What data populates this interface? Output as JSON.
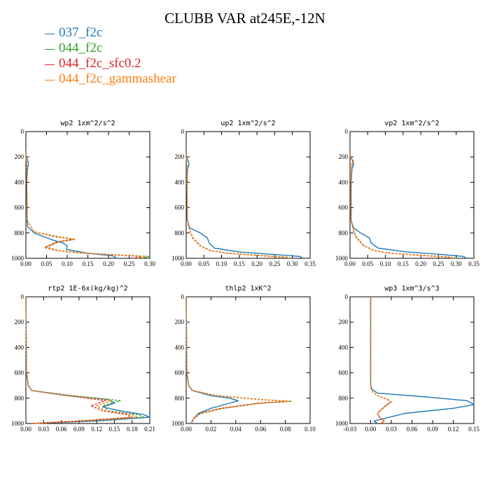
{
  "title": "CLUBB VAR at245E,-12N",
  "legend": [
    {
      "label": "037_f2c",
      "color": "#1f77b4"
    },
    {
      "label": "044_f2c",
      "color": "#2ca02c"
    },
    {
      "label": "044_f2c_sfc0.2",
      "color": "#d62728"
    },
    {
      "label": "044_f2c_gammashear",
      "color": "#ff7f0e"
    }
  ],
  "chart_data": [
    {
      "type": "line",
      "title": "wp2  1xm^2/s^2",
      "xlim": [
        0,
        0.3
      ],
      "ylim": [
        1000,
        0
      ],
      "xticks": [
        0.0,
        0.05,
        0.1,
        0.15,
        0.2,
        0.25,
        0.3
      ],
      "xtick_labels": [
        "0.00",
        "0.05",
        "0.10",
        "0.15",
        "0.20",
        "0.25",
        "0.30"
      ],
      "yticks": [
        0,
        200,
        400,
        600,
        800,
        1000
      ],
      "series": [
        {
          "name": "037_f2c",
          "color": "#1f77b4",
          "dashed": false,
          "x": [
            0,
            0,
            0.005,
            0.006,
            0.004,
            0.002,
            0.003,
            0.004,
            0.02,
            0.06,
            0.09,
            0.1,
            0.098,
            0.15,
            0.21,
            0.22
          ],
          "y": [
            140,
            200,
            230,
            260,
            290,
            400,
            700,
            750,
            800,
            850,
            880,
            900,
            930,
            960,
            980,
            1000
          ]
        },
        {
          "name": "044_f2c",
          "color": "#2ca02c",
          "dashed": true,
          "x": [
            0,
            0,
            0.002,
            0.002,
            0.003,
            0.02,
            0.08,
            0.12,
            0.08,
            0.05,
            0.08,
            0.15,
            0.24,
            0.3,
            0.28
          ],
          "y": [
            150,
            200,
            250,
            400,
            700,
            790,
            830,
            850,
            870,
            910,
            940,
            960,
            975,
            985,
            1000
          ]
        },
        {
          "name": "044_f2c_sfc0.2",
          "color": "#d62728",
          "dashed": true,
          "x": [
            0,
            0,
            0.002,
            0.002,
            0.003,
            0.02,
            0.07,
            0.115,
            0.075,
            0.045,
            0.075,
            0.14,
            0.22,
            0.28,
            0.26
          ],
          "y": [
            150,
            200,
            250,
            400,
            700,
            790,
            830,
            850,
            870,
            915,
            940,
            960,
            975,
            985,
            1000
          ]
        },
        {
          "name": "044_f2c_gammashear",
          "color": "#ff7f0e",
          "dashed": true,
          "x": [
            0,
            0,
            0.002,
            0.002,
            0.003,
            0.02,
            0.075,
            0.118,
            0.078,
            0.048,
            0.078,
            0.145,
            0.23,
            0.29,
            0.27
          ],
          "y": [
            150,
            200,
            250,
            400,
            700,
            790,
            830,
            850,
            870,
            912,
            940,
            960,
            975,
            985,
            1000
          ]
        }
      ]
    },
    {
      "type": "line",
      "title": "up2  1xm^2/s^2",
      "xlim": [
        0,
        0.35
      ],
      "ylim": [
        1000,
        0
      ],
      "xticks": [
        0.0,
        0.05,
        0.1,
        0.15,
        0.2,
        0.25,
        0.3,
        0.35
      ],
      "xtick_labels": [
        "0.00",
        "0.05",
        "0.10",
        "0.15",
        "0.20",
        "0.25",
        "0.30",
        "0.35"
      ],
      "yticks": [
        0,
        200,
        400,
        600,
        800,
        1000
      ],
      "series": [
        {
          "name": "037_f2c",
          "color": "#1f77b4",
          "dashed": false,
          "x": [
            0,
            0,
            0.006,
            0.008,
            0.004,
            0.002,
            0.003,
            0.01,
            0.04,
            0.06,
            0.065,
            0.08,
            0.15,
            0.25,
            0.32,
            0.33
          ],
          "y": [
            150,
            200,
            230,
            260,
            290,
            400,
            700,
            760,
            800,
            840,
            880,
            920,
            950,
            970,
            985,
            1000
          ]
        },
        {
          "name": "044_f2c",
          "color": "#2ca02c",
          "dashed": true,
          "x": [
            0,
            0,
            0.002,
            0.002,
            0.003,
            0.01,
            0.02,
            0.04,
            0.07,
            0.12,
            0.2,
            0.28,
            0.3
          ],
          "y": [
            150,
            200,
            260,
            400,
            700,
            780,
            840,
            900,
            940,
            960,
            975,
            990,
            1000
          ]
        },
        {
          "name": "044_f2c_sfc0.2",
          "color": "#d62728",
          "dashed": true,
          "x": [
            0,
            0,
            0.002,
            0.002,
            0.003,
            0.01,
            0.018,
            0.038,
            0.068,
            0.115,
            0.19,
            0.27,
            0.29
          ],
          "y": [
            150,
            200,
            260,
            400,
            700,
            780,
            840,
            900,
            940,
            960,
            975,
            990,
            1000
          ]
        },
        {
          "name": "044_f2c_gammashear",
          "color": "#ff7f0e",
          "dashed": true,
          "x": [
            0,
            0,
            0.002,
            0.002,
            0.003,
            0.01,
            0.019,
            0.039,
            0.069,
            0.118,
            0.195,
            0.275,
            0.295
          ],
          "y": [
            150,
            200,
            260,
            400,
            700,
            780,
            840,
            900,
            940,
            960,
            975,
            990,
            1000
          ]
        }
      ]
    },
    {
      "type": "line",
      "title": "vp2  1xm^2/s^2",
      "xlim": [
        0,
        0.35
      ],
      "ylim": [
        1000,
        0
      ],
      "xticks": [
        0.0,
        0.05,
        0.1,
        0.15,
        0.2,
        0.25,
        0.3,
        0.35
      ],
      "xtick_labels": [
        "0.00",
        "0.05",
        "0.10",
        "0.15",
        "0.20",
        "0.25",
        "0.30",
        "0.35"
      ],
      "yticks": [
        0,
        200,
        400,
        600,
        800,
        1000
      ],
      "series": [
        {
          "name": "037_f2c",
          "color": "#1f77b4",
          "dashed": false,
          "x": [
            0,
            0,
            0.008,
            0.01,
            0.006,
            0.003,
            0.003,
            0.01,
            0.03,
            0.055,
            0.06,
            0.08,
            0.16,
            0.26,
            0.32,
            0.33
          ],
          "y": [
            150,
            200,
            230,
            260,
            290,
            400,
            700,
            760,
            800,
            840,
            880,
            920,
            950,
            970,
            985,
            1000
          ]
        },
        {
          "name": "044_f2c",
          "color": "#2ca02c",
          "dashed": true,
          "x": [
            0,
            0,
            0.01,
            0.006,
            0.004,
            0.003,
            0.01,
            0.02,
            0.04,
            0.07,
            0.12,
            0.2,
            0.28,
            0.3
          ],
          "y": [
            150,
            200,
            230,
            260,
            300,
            700,
            780,
            840,
            900,
            940,
            960,
            975,
            990,
            1000
          ]
        },
        {
          "name": "044_f2c_sfc0.2",
          "color": "#d62728",
          "dashed": true,
          "x": [
            0,
            0,
            0.008,
            0.005,
            0.004,
            0.003,
            0.01,
            0.018,
            0.038,
            0.068,
            0.115,
            0.19,
            0.27,
            0.29
          ],
          "y": [
            150,
            200,
            230,
            260,
            300,
            700,
            780,
            840,
            900,
            940,
            960,
            975,
            990,
            1000
          ]
        },
        {
          "name": "044_f2c_gammashear",
          "color": "#ff7f0e",
          "dashed": true,
          "x": [
            0,
            0,
            0.009,
            0.005,
            0.004,
            0.003,
            0.01,
            0.019,
            0.039,
            0.069,
            0.118,
            0.195,
            0.275,
            0.295
          ],
          "y": [
            150,
            200,
            230,
            260,
            300,
            700,
            780,
            840,
            900,
            940,
            960,
            975,
            990,
            1000
          ]
        }
      ]
    },
    {
      "type": "line",
      "title": "rtp2  1E-6x(kg/kg)^2",
      "xlim": [
        0,
        0.21
      ],
      "ylim": [
        1000,
        0
      ],
      "xticks": [
        0.0,
        0.03,
        0.06,
        0.09,
        0.12,
        0.15,
        0.18,
        0.21
      ],
      "xtick_labels": [
        "0.00",
        "0.03",
        "0.06",
        "0.09",
        "0.12",
        "0.15",
        "0.18",
        "0.21"
      ],
      "yticks": [
        0,
        200,
        400,
        600,
        800,
        1000
      ],
      "series": [
        {
          "name": "037_f2c",
          "color": "#1f77b4",
          "dashed": false,
          "x": [
            0,
            0.001,
            0.004,
            0.01,
            0.07,
            0.14,
            0.15,
            0.13,
            0.16,
            0.2,
            0.21,
            0.12,
            0.01
          ],
          "y": [
            0,
            600,
            700,
            740,
            780,
            810,
            840,
            870,
            900,
            930,
            950,
            980,
            1000
          ]
        },
        {
          "name": "044_f2c",
          "color": "#2ca02c",
          "dashed": true,
          "x": [
            0,
            0.001,
            0.004,
            0.01,
            0.08,
            0.14,
            0.16,
            0.13,
            0.14,
            0.19,
            0.2,
            0.1,
            0.01
          ],
          "y": [
            0,
            600,
            700,
            740,
            780,
            810,
            820,
            860,
            900,
            930,
            950,
            980,
            1000
          ]
        },
        {
          "name": "044_f2c_sfc0.2",
          "color": "#d62728",
          "dashed": true,
          "x": [
            0,
            0.001,
            0.004,
            0.01,
            0.07,
            0.12,
            0.135,
            0.11,
            0.13,
            0.17,
            0.18,
            0.09,
            0.01
          ],
          "y": [
            0,
            600,
            700,
            740,
            780,
            810,
            820,
            860,
            900,
            930,
            950,
            980,
            1000
          ]
        },
        {
          "name": "044_f2c_gammashear",
          "color": "#ff7f0e",
          "dashed": true,
          "x": [
            0,
            0.001,
            0.004,
            0.01,
            0.075,
            0.13,
            0.145,
            0.12,
            0.135,
            0.18,
            0.19,
            0.095,
            0.01
          ],
          "y": [
            0,
            600,
            700,
            740,
            780,
            810,
            820,
            860,
            900,
            930,
            950,
            980,
            1000
          ]
        }
      ]
    },
    {
      "type": "line",
      "title": "thlp2  1xK^2",
      "xlim": [
        0,
        0.1
      ],
      "ylim": [
        1000,
        0
      ],
      "xticks": [
        0.0,
        0.02,
        0.04,
        0.06,
        0.08,
        0.1
      ],
      "xtick_labels": [
        "0.00",
        "0.02",
        "0.04",
        "0.06",
        "0.08",
        "0.10"
      ],
      "yticks": [
        0,
        200,
        400,
        600,
        800,
        1000
      ],
      "series": [
        {
          "name": "037_f2c",
          "color": "#1f77b4",
          "dashed": false,
          "x": [
            0,
            0.0005,
            0.002,
            0.005,
            0.02,
            0.035,
            0.042,
            0.035,
            0.02,
            0.01,
            0.006,
            0.004
          ],
          "y": [
            0,
            600,
            700,
            740,
            780,
            800,
            820,
            840,
            880,
            920,
            960,
            1000
          ]
        },
        {
          "name": "044_f2c",
          "color": "#2ca02c",
          "dashed": true,
          "x": [
            0,
            0.0005,
            0.002,
            0.005,
            0.025,
            0.06,
            0.085,
            0.06,
            0.03,
            0.012,
            0.006,
            0.004
          ],
          "y": [
            0,
            600,
            700,
            740,
            780,
            810,
            825,
            840,
            880,
            920,
            960,
            1000
          ]
        },
        {
          "name": "044_f2c_sfc0.2",
          "color": "#d62728",
          "dashed": true,
          "x": [
            0,
            0.0005,
            0.002,
            0.005,
            0.024,
            0.058,
            0.082,
            0.058,
            0.028,
            0.011,
            0.006,
            0.004
          ],
          "y": [
            0,
            600,
            700,
            740,
            780,
            810,
            825,
            840,
            880,
            920,
            960,
            1000
          ]
        },
        {
          "name": "044_f2c_gammashear",
          "color": "#ff7f0e",
          "dashed": true,
          "x": [
            0,
            0.0005,
            0.002,
            0.005,
            0.024,
            0.059,
            0.083,
            0.059,
            0.029,
            0.011,
            0.006,
            0.004
          ],
          "y": [
            0,
            600,
            700,
            740,
            780,
            810,
            825,
            840,
            880,
            920,
            960,
            1000
          ]
        }
      ]
    },
    {
      "type": "line",
      "title": "wp3  1xm^3/s^3",
      "xlim": [
        -0.03,
        0.15
      ],
      "ylim": [
        1000,
        0
      ],
      "xticks": [
        -0.03,
        0.0,
        0.03,
        0.06,
        0.09,
        0.12,
        0.15
      ],
      "xtick_labels": [
        "-0.03",
        "0.00",
        "0.03",
        "0.06",
        "0.09",
        "0.12",
        "0.15"
      ],
      "yticks": [
        0,
        200,
        400,
        600,
        800,
        1000
      ],
      "series": [
        {
          "name": "037_f2c",
          "color": "#1f77b4",
          "dashed": false,
          "x": [
            0,
            0,
            0.002,
            0.01,
            0.08,
            0.14,
            0.15,
            0.12,
            0.05,
            0.02,
            0.005,
            0.01
          ],
          "y": [
            0,
            700,
            730,
            760,
            790,
            820,
            850,
            880,
            920,
            960,
            980,
            1000
          ]
        },
        {
          "name": "044_f2c",
          "color": "#2ca02c",
          "dashed": true,
          "x": [
            0,
            0,
            0.001,
            0.01,
            0.025,
            0.03,
            0.02,
            0.01,
            0.015,
            0.02,
            0.015
          ],
          "y": [
            0,
            700,
            740,
            780,
            810,
            830,
            870,
            920,
            960,
            980,
            1000
          ]
        },
        {
          "name": "044_f2c_sfc0.2",
          "color": "#d62728",
          "dashed": true,
          "x": [
            0,
            0,
            0.001,
            0.01,
            0.024,
            0.029,
            0.019,
            0.01,
            0.014,
            0.019,
            0.014
          ],
          "y": [
            0,
            700,
            740,
            780,
            810,
            830,
            870,
            920,
            960,
            980,
            1000
          ]
        },
        {
          "name": "044_f2c_gammashear",
          "color": "#ff7f0e",
          "dashed": true,
          "x": [
            0,
            0,
            0.001,
            0.01,
            0.025,
            0.03,
            0.02,
            0.01,
            0.015,
            0.02,
            0.015
          ],
          "y": [
            0,
            700,
            740,
            780,
            810,
            830,
            870,
            920,
            960,
            980,
            1000
          ]
        }
      ]
    }
  ]
}
